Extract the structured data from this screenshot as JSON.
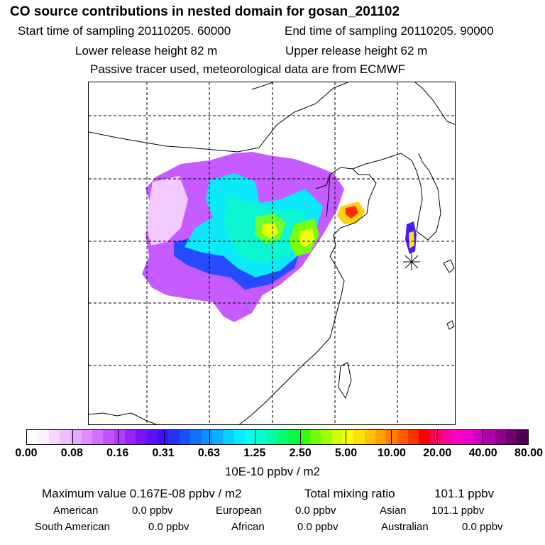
{
  "header": {
    "title": "CO  source contributions in nested domain for gosan_201102",
    "start_time": "Start time of sampling 20110205. 60000",
    "end_time": "End time of sampling 20110205. 90000",
    "lower_height": "Lower release height   82 m",
    "upper_height": "Upper release height   62 m",
    "tracer_note": "Passive tracer used, meteorological data are from ECMWF"
  },
  "legend": {
    "ticks": [
      "0.00",
      "0.08",
      "0.16",
      "0.31",
      "0.63",
      "1.25",
      "2.50",
      "5.00",
      "10.00",
      "20.00",
      "40.00",
      "80.00"
    ],
    "unit": "10E-10 ppbv / m2",
    "colors": [
      "#ffffff",
      "#fdf0ff",
      "#f8d8ff",
      "#f1bfff",
      "#e9a8ff",
      "#df8cff",
      "#d270ff",
      "#c452ff",
      "#b23cff",
      "#9a22ff",
      "#7c10ff",
      "#5c10ff",
      "#3c12ff",
      "#2530ff",
      "#1750ff",
      "#0f70ff",
      "#0c90ff",
      "#08b0ff",
      "#05d0ff",
      "#00f0ff",
      "#00ffee",
      "#00ffcc",
      "#00ffa0",
      "#00ff70",
      "#00ff40",
      "#30ff10",
      "#70ff00",
      "#a0ff00",
      "#d0ff00",
      "#ffff00",
      "#ffe000",
      "#ffc000",
      "#ffa000",
      "#ff8000",
      "#ff5c00",
      "#ff3000",
      "#ff0000",
      "#ff0060",
      "#ff00a0",
      "#ff00c8",
      "#f000d0",
      "#d000c0",
      "#b000b0",
      "#900090",
      "#700070",
      "#500050"
    ]
  },
  "stats": {
    "maximum_value": "Maximum value  0.167E-08 ppbv / m2",
    "total_mixing": "Total mixing ratio",
    "total_mixing_value": "101.1 ppbv"
  },
  "contributions": [
    {
      "name": "American",
      "value": "0.0 ppbv"
    },
    {
      "name": "European",
      "value": "0.0 ppbv"
    },
    {
      "name": "Asian",
      "value": "101.1 ppbv"
    },
    {
      "name": "South American",
      "value": "0.0 ppbv"
    },
    {
      "name": "African",
      "value": "0.0 ppbv"
    },
    {
      "name": "Australian",
      "value": "0.0 ppbv"
    }
  ]
}
